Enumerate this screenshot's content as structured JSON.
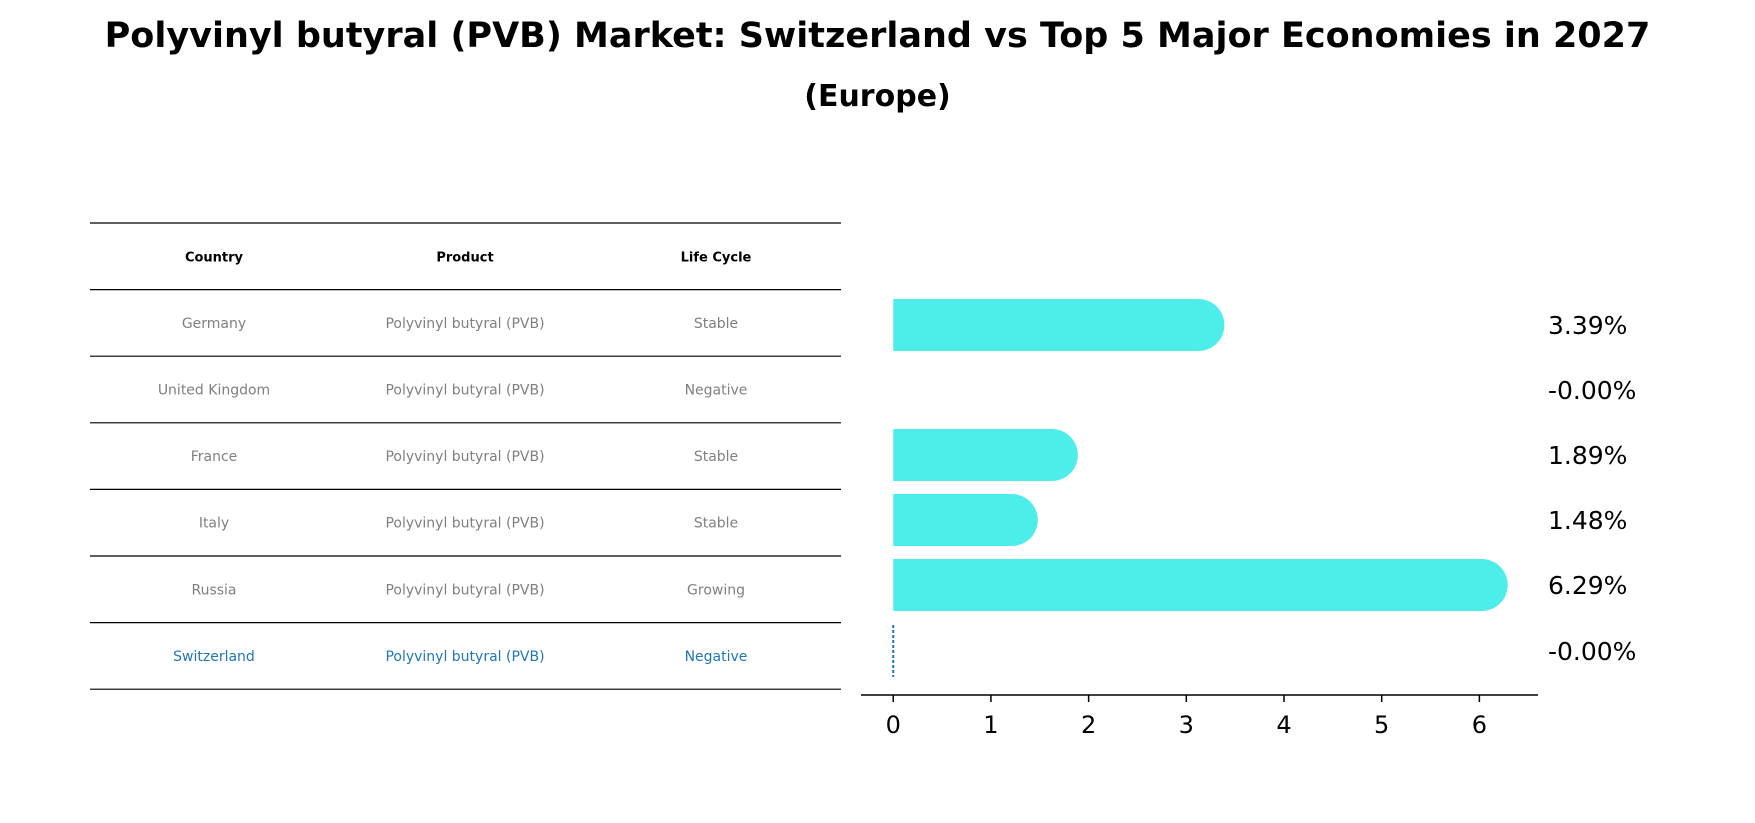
{
  "title": "Polyvinyl butyral (PVB) Market: Switzerland vs Top 5 Major Economies in 2027",
  "subtitle": "(Europe)",
  "table": {
    "headers": [
      "Country",
      "Product",
      "Life Cycle"
    ],
    "rows": [
      {
        "country": "Germany",
        "product": "Polyvinyl butyral (PVB)",
        "life_cycle": "Stable",
        "highlight": false
      },
      {
        "country": "United Kingdom",
        "product": "Polyvinyl butyral (PVB)",
        "life_cycle": "Negative",
        "highlight": false
      },
      {
        "country": "France",
        "product": "Polyvinyl butyral (PVB)",
        "life_cycle": "Stable",
        "highlight": false
      },
      {
        "country": "Italy",
        "product": "Polyvinyl butyral (PVB)",
        "life_cycle": "Stable",
        "highlight": false
      },
      {
        "country": "Russia",
        "product": "Polyvinyl butyral (PVB)",
        "life_cycle": "Growing",
        "highlight": false
      },
      {
        "country": "Switzerland",
        "product": "Polyvinyl butyral (PVB)",
        "life_cycle": "Negative",
        "highlight": true
      }
    ]
  },
  "colors": {
    "bar": "#4deee9",
    "highlight": "#1f77b4",
    "muted_text": "#808080",
    "text": "#000000"
  },
  "chart_data": {
    "type": "bar",
    "orientation": "horizontal",
    "categories": [
      "Germany",
      "United Kingdom",
      "France",
      "Italy",
      "Russia",
      "Switzerland"
    ],
    "values": [
      3.39,
      -0.0,
      1.89,
      1.48,
      6.29,
      -0.0
    ],
    "value_labels": [
      "3.39%",
      "-0.00%",
      "1.89%",
      "1.48%",
      "6.29%",
      "-0.00%"
    ],
    "xlim": [
      -0.33,
      6.6
    ],
    "xticks": [
      0,
      1,
      2,
      3,
      4,
      5,
      6
    ],
    "xlabel": "",
    "ylabel": "",
    "grid": false
  }
}
